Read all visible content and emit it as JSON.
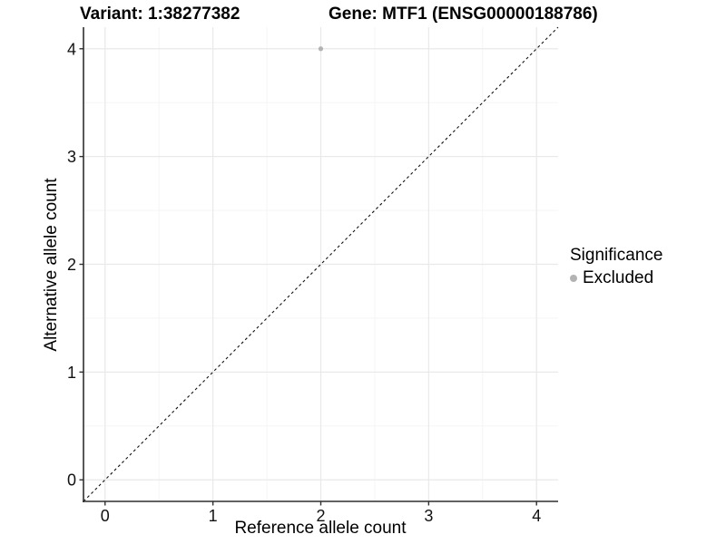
{
  "chart_data": {
    "type": "scatter",
    "titles": {
      "left": "Variant: 1:38277382",
      "right": "Gene: MTF1 (ENSG00000188786)"
    },
    "xlabel": "Reference allele count",
    "ylabel": "Alternative allele count",
    "xlim": [
      -0.2,
      4.2
    ],
    "ylim": [
      -0.2,
      4.2
    ],
    "xticks": [
      0,
      1,
      2,
      3,
      4
    ],
    "yticks": [
      0,
      1,
      2,
      3,
      4
    ],
    "grid": {
      "major": true,
      "minor": true
    },
    "legend": {
      "title": "Significance",
      "position": "right",
      "items": [
        {
          "label": "Excluded",
          "color": "#b3b3b3"
        }
      ]
    },
    "series": [
      {
        "name": "Excluded",
        "color": "#b3b3b3",
        "marker_radius": 2.6,
        "points": [
          {
            "x": 2,
            "y": 4
          }
        ]
      }
    ],
    "reference_line": {
      "type": "identity",
      "equation": "y = x",
      "style": "dashed",
      "color": "#111111"
    },
    "colors": {
      "background": "#ffffff",
      "major_grid": "#e9e9e9",
      "minor_grid": "#f5f5f5",
      "axis_line": "#2f2f2f",
      "text": "#111111"
    }
  }
}
